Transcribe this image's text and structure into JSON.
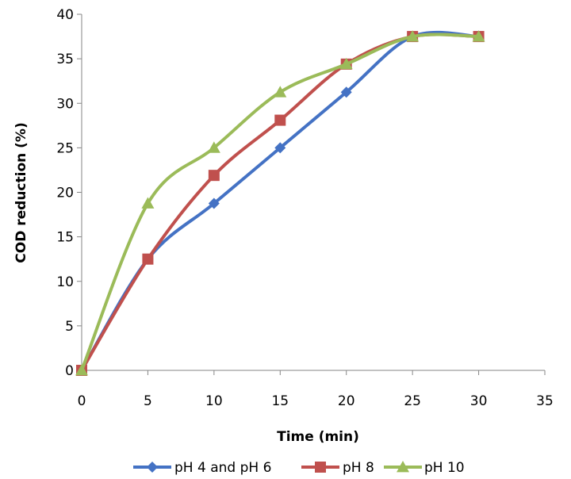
{
  "chart_data": {
    "type": "line",
    "xlabel": "Time (min)",
    "ylabel": "COD reduction (%)",
    "xlim": [
      0,
      35
    ],
    "ylim": [
      0,
      40
    ],
    "x_ticks": [
      0,
      5,
      10,
      15,
      20,
      25,
      30,
      35
    ],
    "y_ticks": [
      0,
      5,
      10,
      15,
      20,
      25,
      30,
      35,
      40
    ],
    "smooth": true,
    "grid": false,
    "legend_position": "bottom",
    "series": [
      {
        "name": "pH 4 and pH 6",
        "color": "#4472C4",
        "marker": "diamond",
        "x": [
          0,
          5,
          10,
          15,
          20,
          25,
          30
        ],
        "y": [
          0,
          12.5,
          18.75,
          25,
          31.25,
          37.5,
          37.5
        ]
      },
      {
        "name": "pH 8",
        "color": "#C0504D",
        "marker": "square",
        "x": [
          0,
          5,
          10,
          15,
          20,
          25,
          30
        ],
        "y": [
          0,
          12.5,
          21.9,
          28.1,
          34.4,
          37.5,
          37.5
        ]
      },
      {
        "name": "pH 10",
        "color": "#9BBB59",
        "marker": "triangle",
        "x": [
          0,
          5,
          10,
          15,
          20,
          25,
          30
        ],
        "y": [
          0,
          18.75,
          25,
          31.25,
          34.4,
          37.5,
          37.5
        ]
      }
    ]
  }
}
